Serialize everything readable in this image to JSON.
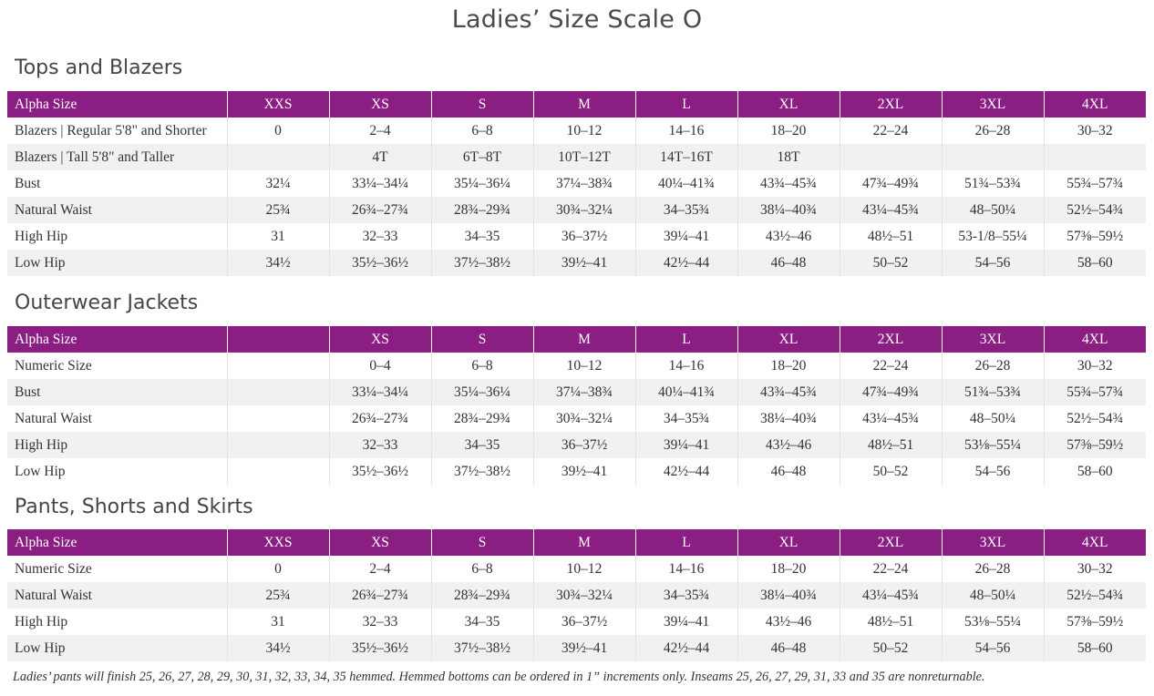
{
  "page_title": "Ladies’ Size Scale O",
  "tops": {
    "title": "Tops and Blazers",
    "header": [
      "Alpha Size",
      "XXS",
      "XS",
      "S",
      "M",
      "L",
      "XL",
      "2XL",
      "3XL",
      "4XL"
    ],
    "rows": [
      [
        "Blazers | Regular 5'8\" and Shorter",
        "0",
        "2–4",
        "6–8",
        "10–12",
        "14–16",
        "18–20",
        "22–24",
        "26–28",
        "30–32"
      ],
      [
        "Blazers  |  Tall 5'8\" and Taller",
        "",
        "4T",
        "6T–8T",
        "10T–12T",
        "14T–16T",
        "18T",
        "",
        "",
        ""
      ],
      [
        "Bust",
        "32¼",
        "33¼–34¼",
        "35¼–36¼",
        "37¼–38¾",
        "40¼–41¾",
        "43¾–45¾",
        "47¾–49¾",
        "51¾–53¾",
        "55¾–57¾"
      ],
      [
        "Natural Waist",
        "25¾",
        "26¾–27¾",
        "28¾–29¾",
        "30¾–32¼",
        "34–35¾",
        "38¼–40¾",
        "43¼–45¾",
        "48–50¼",
        "52½–54¾"
      ],
      [
        "High Hip",
        "31",
        "32–33",
        "34–35",
        "36–37½",
        "39¼–41",
        "43½–46",
        "48½–51",
        "53-1/8–55¼",
        "57⅜–59½"
      ],
      [
        "Low Hip",
        "34½",
        "35½–36½",
        "37½–38½",
        "39½–41",
        "42½–44",
        "46–48",
        "50–52",
        "54–56",
        "58–60"
      ]
    ]
  },
  "outerwear": {
    "title": "Outerwear Jackets",
    "header": [
      "Alpha Size",
      "",
      "XS",
      "S",
      "M",
      "L",
      "XL",
      "2XL",
      "3XL",
      "4XL"
    ],
    "rows": [
      [
        "Numeric Size",
        "",
        "0–4",
        "6–8",
        "10–12",
        "14–16",
        "18–20",
        "22–24",
        "26–28",
        "30–32"
      ],
      [
        "Bust",
        "",
        "33¼–34¼",
        "35¼–36¼",
        "37¼–38¾",
        "40¼–41¾",
        "43¾–45¾",
        "47¾–49¾",
        "51¾–53¾",
        "55¾–57¾"
      ],
      [
        "Natural Waist",
        "",
        "26¾–27¾",
        "28¾–29¾",
        "30¾–32¼",
        "34–35¾",
        "38¼–40¾",
        "43¼–45¾",
        "48–50¼",
        "52½–54¾"
      ],
      [
        "High Hip",
        "",
        "32–33",
        "34–35",
        "36–37½",
        "39¼–41",
        "43½–46",
        "48½–51",
        "53⅛–55¼",
        "57⅜–59½"
      ],
      [
        "Low Hip",
        "",
        "35½–36½",
        "37½–38½",
        "39½–41",
        "42½–44",
        "46–48",
        "50–52",
        "54–56",
        "58–60"
      ]
    ]
  },
  "pants": {
    "title": "Pants, Shorts and Skirts",
    "header": [
      "Alpha Size",
      "XXS",
      "XS",
      "S",
      "M",
      "L",
      "XL",
      "2XL",
      "3XL",
      "4XL"
    ],
    "rows": [
      [
        "Numeric Size",
        "0",
        "2–4",
        "6–8",
        "10–12",
        "14–16",
        "18–20",
        "22–24",
        "26–28",
        "30–32"
      ],
      [
        "Natural Waist",
        "25¾",
        "26¾–27¾",
        "28¾–29¾",
        "30¾–32¼",
        "34–35¾",
        "38¼–40¾",
        "43¼–45¾",
        "48–50¼",
        "52½–54¾"
      ],
      [
        "High Hip",
        "31",
        "32–33",
        "34–35",
        "36–37½",
        "39¼–41",
        "43½–46",
        "48½–51",
        "53⅛–55¼",
        "57⅜–59½"
      ],
      [
        "Low Hip",
        "34½",
        "35½–36½",
        "37½–38½",
        "39½–41",
        "42½–44",
        "46–48",
        "50–52",
        "54–56",
        "58–60"
      ]
    ]
  },
  "footnote": "Ladies’ pants will finish 25, 26, 27, 28, 29, 30, 31, 32, 33, 34, 35 hemmed. Hemmed bottoms can be ordered in 1” increments only. Inseams 25, 26, 27, 29, 31, 33 and 35 are nonreturnable.",
  "colors": {
    "header_bg": "#8b1e83",
    "header_text": "#ffffff",
    "shaded_row": "#f1f1f1"
  }
}
